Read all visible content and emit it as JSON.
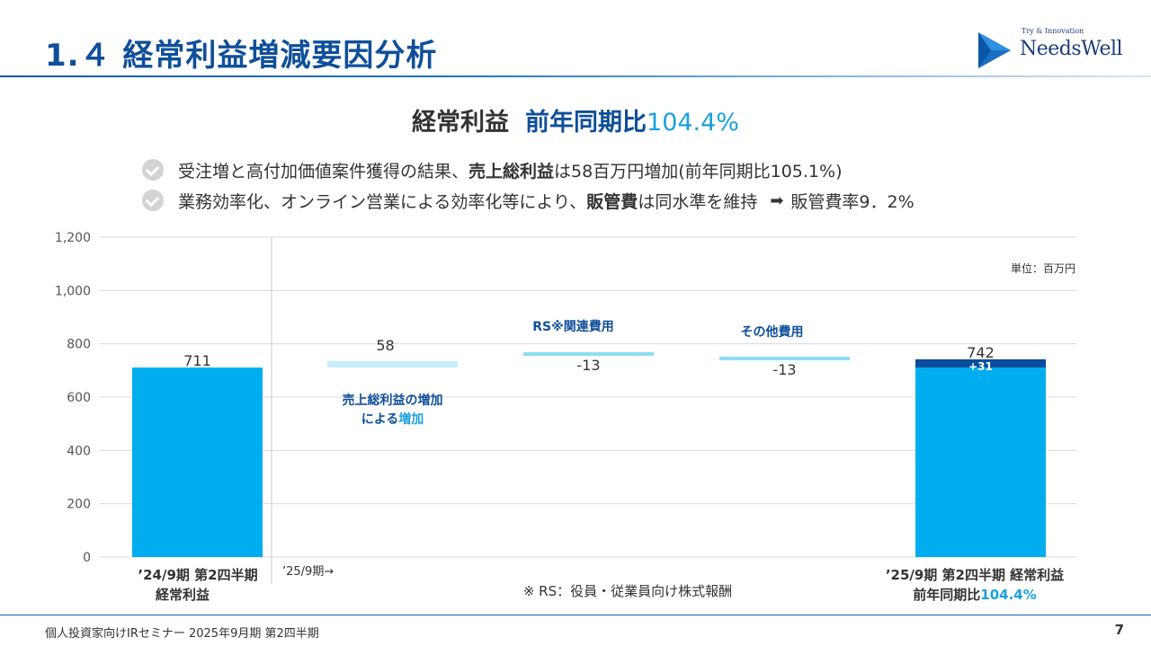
{
  "header": {
    "title": "1.４ 経常利益増減要因分析",
    "logo_tagline": "Try & Innovation",
    "logo_name": "NeedsWell"
  },
  "headline": {
    "part1": "経常利益",
    "part2": "前年同期比",
    "part3": "104.4%"
  },
  "bullets": [
    {
      "pre": "受注増と高付加価値案件獲得の結果、",
      "bold": "売上総利益",
      "post": "は58百万円増加(前年同期比105.1%)"
    },
    {
      "pre": "業務効率化、オンライン営業による効率化等により、",
      "bold": "販管費",
      "post": "は同水準を維持",
      "tail": "販管費率9．2%"
    }
  ],
  "colors": {
    "bar": "#00aeef",
    "light_bar": "#c8eefb",
    "thin_bar": "#8fdcf3",
    "increment": "#0a4d9c",
    "navy_text": "#0f4f9a",
    "accent_text": "#1aa0de"
  },
  "chart_data": {
    "type": "bar",
    "subtype": "waterfall",
    "ylim": [
      0,
      1200
    ],
    "yticks": [
      "0",
      "200",
      "400",
      "600",
      "800",
      "1,000",
      "1,200"
    ],
    "ytick_values": [
      0,
      200,
      400,
      600,
      800,
      1000,
      1200
    ],
    "unit_label": "単位：百万円",
    "bars": [
      {
        "name": "prev",
        "base": 0,
        "top": 711,
        "label": "711",
        "kind": "total",
        "cat": [
          "’24/9期 第2四半期",
          "経常利益"
        ]
      },
      {
        "name": "gross-profit",
        "base": 711,
        "top": 769,
        "label": "58",
        "kind": "increase",
        "annot": [
          "売上総利益の増加",
          "による",
          "増加"
        ]
      },
      {
        "name": "rs-cost",
        "base": 756,
        "top": 769,
        "label": "-13",
        "kind": "decrease",
        "annot": [
          "RS※関連費用"
        ]
      },
      {
        "name": "other-cost",
        "base": 743,
        "top": 756,
        "label": "-13",
        "kind": "decrease",
        "annot": [
          "その他費用"
        ]
      },
      {
        "name": "current",
        "base": 0,
        "top": 711,
        "label": "742",
        "kind": "total",
        "increment": 31,
        "increment_label": "+31",
        "cat": [
          "’25/9期 第2四半期 経常利益",
          "前年同期比",
          "104.4%"
        ]
      }
    ],
    "period_marker": "’25/9期→",
    "footnote": "※ RS：役員・従業員向け株式報酬"
  },
  "footer": {
    "left": "個人投資家向けIRセミナー 2025年9月期 第2四半期",
    "page": "7"
  }
}
